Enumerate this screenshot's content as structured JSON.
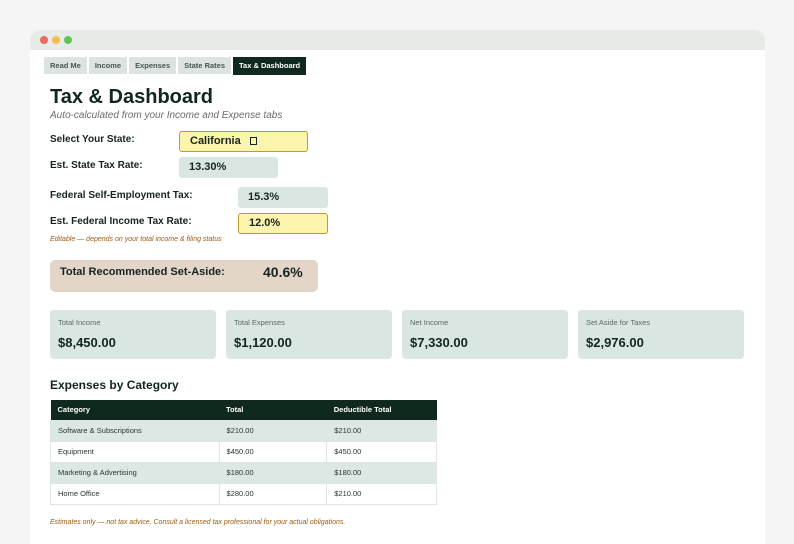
{
  "tabs": [
    {
      "label": "Read Me"
    },
    {
      "label": "Income"
    },
    {
      "label": "Expenses"
    },
    {
      "label": "State Rates"
    },
    {
      "label": "Tax & Dashboard"
    }
  ],
  "active_tab": "Tax & Dashboard",
  "page": {
    "title": "Tax & Dashboard",
    "subtitle": "Auto-calculated from your Income and Expense tabs"
  },
  "form": {
    "state_label": "Select Your State:",
    "state_value": "California",
    "state_icon": "dropdown-icon",
    "state_tax_label": "Est. State Tax Rate:",
    "state_tax_value": "13.30%",
    "se_tax_label": "Federal Self-Employment Tax:",
    "se_tax_value": "15.3%",
    "fed_tax_label": "Est. Federal Income Tax Rate:",
    "fed_tax_value": "12.0%",
    "fed_tax_note": "Editable — depends on your total income & filing status"
  },
  "setaside": {
    "label": "Total Recommended Set-Aside:",
    "value": "40.6%"
  },
  "cards": [
    {
      "title": "Total Income",
      "value": "$8,450.00"
    },
    {
      "title": "Total Expenses",
      "value": "$1,120.00"
    },
    {
      "title": "Net Income",
      "value": "$7,330.00"
    },
    {
      "title": "Set Aside for Taxes",
      "value": "$2,976.00"
    }
  ],
  "expenses_section": {
    "title": "Expenses by Category",
    "headers": [
      "Category",
      "Total",
      "Deductible Total"
    ],
    "rows": [
      [
        "Software & Subscriptions",
        "$210.00",
        "$210.00"
      ],
      [
        "Equipment",
        "$450.00",
        "$450.00"
      ],
      [
        "Marketing & Advertising",
        "$180.00",
        "$180.00"
      ],
      [
        "Home Office",
        "$280.00",
        "$210.00"
      ]
    ]
  },
  "disclaimer": "Estimates only — not tax advice. Consult a licensed tax professional for your actual obligations.",
  "colors": {
    "accent_dark": "#10291f",
    "input_fill": "#fdf5ad",
    "readonly_fill": "#d9e6e1",
    "setaside_fill": "#e3d6c8",
    "note_text": "#9a5b12"
  }
}
